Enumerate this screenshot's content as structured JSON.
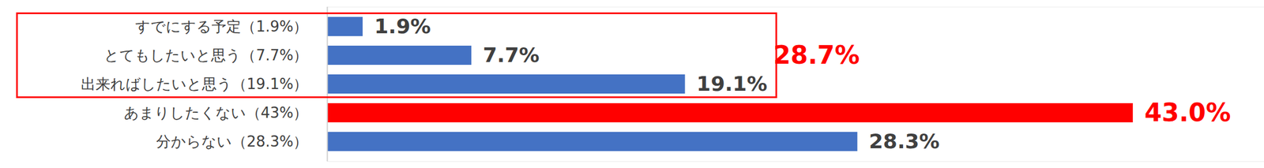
{
  "chart_data": {
    "type": "bar",
    "orientation": "horizontal",
    "categories": [
      "すでにする予定（1.9%）",
      "とてもしたいと思う（7.7%）",
      "出来ればしたいと思う（19.1%）",
      "あまりしたくない（43%）",
      "分からない（28.3%）"
    ],
    "values": [
      1.9,
      7.7,
      19.1,
      43.0,
      28.3
    ],
    "value_labels": [
      "1.9%",
      "7.7%",
      "19.1%",
      "43.0%",
      "28.3%"
    ],
    "color": "#4472c4",
    "colors": [
      "#4472c4",
      "#4472c4",
      "#4472c4",
      "#ff0000",
      "#4472c4"
    ],
    "xlim": [
      0,
      50
    ],
    "tick_labels": "y",
    "data_labels": true,
    "grid": false,
    "annotations": [
      {
        "text": "28.7%"
      }
    ]
  }
}
